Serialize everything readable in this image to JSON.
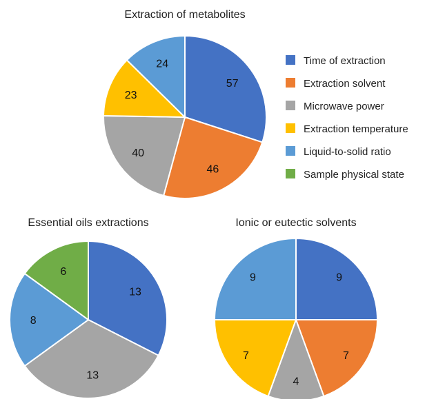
{
  "colors": {
    "time_of_extraction": "#4472C4",
    "extraction_solvent": "#ED7D31",
    "microwave_power": "#A5A5A5",
    "extraction_temperature": "#FFC000",
    "liquid_to_solid_ratio": "#5B9BD5",
    "sample_physical_state": "#70AD47"
  },
  "legend": [
    {
      "label": "Time of extraction",
      "key": "time_of_extraction"
    },
    {
      "label": "Extraction solvent",
      "key": "extraction_solvent"
    },
    {
      "label": "Microwave power",
      "key": "microwave_power"
    },
    {
      "label": "Extraction temperature",
      "key": "extraction_temperature"
    },
    {
      "label": "Liquid-to-solid ratio",
      "key": "liquid_to_solid_ratio"
    },
    {
      "label": "Sample physical state",
      "key": "sample_physical_state"
    }
  ],
  "legend_placement": "right of first chart",
  "chart_data": [
    {
      "type": "pie",
      "title": "Extraction of metabolites",
      "start_angle_deg": 0,
      "direction": "clockwise",
      "slices": [
        {
          "label": "Time of extraction",
          "key": "time_of_extraction",
          "value": 57
        },
        {
          "label": "Extraction solvent",
          "key": "extraction_solvent",
          "value": 46
        },
        {
          "label": "Microwave power",
          "key": "microwave_power",
          "value": 40
        },
        {
          "label": "Extraction temperature",
          "key": "extraction_temperature",
          "value": 23
        },
        {
          "label": "Liquid-to-solid ratio",
          "key": "liquid_to_solid_ratio",
          "value": 24
        }
      ]
    },
    {
      "type": "pie",
      "title": "Essential oils extractions",
      "start_angle_deg": 0,
      "direction": "clockwise",
      "slices": [
        {
          "label": "Time of extraction",
          "key": "time_of_extraction",
          "value": 13
        },
        {
          "label": "Microwave power",
          "key": "microwave_power",
          "value": 13
        },
        {
          "label": "Liquid-to-solid ratio",
          "key": "liquid_to_solid_ratio",
          "value": 8
        },
        {
          "label": "Sample physical state",
          "key": "sample_physical_state",
          "value": 6
        }
      ]
    },
    {
      "type": "pie",
      "title": "Ionic or eutectic solvents",
      "start_angle_deg": 0,
      "direction": "clockwise",
      "slices": [
        {
          "label": "Time of extraction",
          "key": "time_of_extraction",
          "value": 9
        },
        {
          "label": "Extraction solvent",
          "key": "extraction_solvent",
          "value": 7
        },
        {
          "label": "Microwave power",
          "key": "microwave_power",
          "value": 4
        },
        {
          "label": "Extraction temperature",
          "key": "extraction_temperature",
          "value": 7
        },
        {
          "label": "Liquid-to-solid ratio",
          "key": "liquid_to_solid_ratio",
          "value": 9
        }
      ]
    }
  ]
}
